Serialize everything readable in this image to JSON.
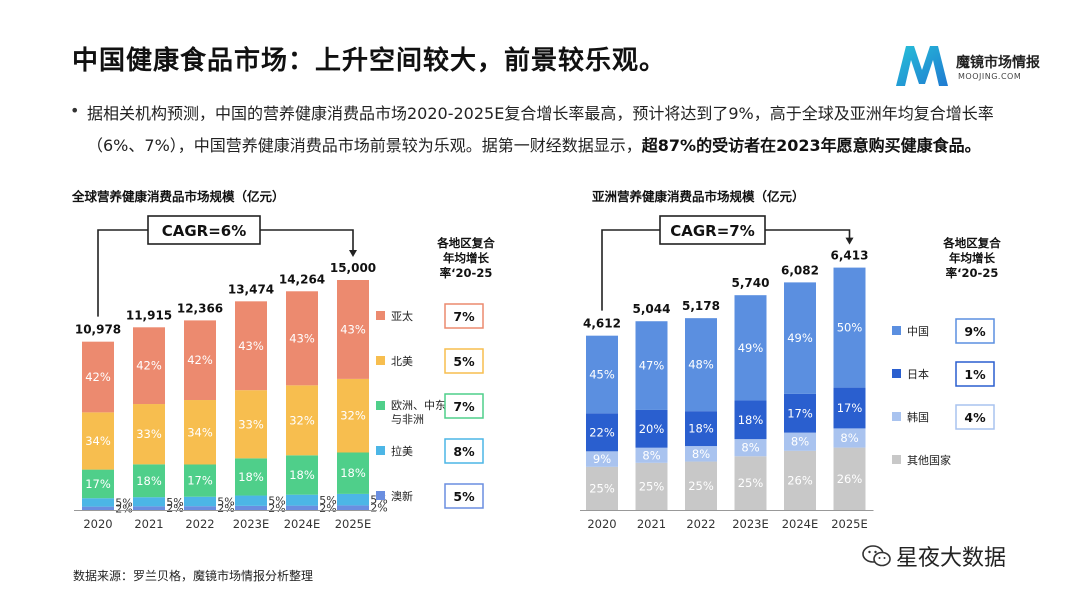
{
  "title": "中国健康食品市场：上升空间较大，前景较乐观。",
  "logo": {
    "name": "魔镜市场情报",
    "sub": "MOOJING.COM"
  },
  "bullet": {
    "part1": "据相关机构预测，中国的营养健康消费品市场2020-2025E复合增长率最高，预计将达到了9%，高于全球及亚洲年均复合增长率（6%、7%），中国营养健康消费品市场前景较为乐观。据第一财经数据显示，",
    "bold": "超87%的受访者在2023年愿意购买健康食品。"
  },
  "source": "数据来源：罗兰贝格，魔镜市场情报分析整理",
  "watermark": "星夜大数据",
  "chart_data": [
    {
      "type": "bar",
      "title": "全球营养健康消费品市场规模（亿元）",
      "cagr_label": "CAGR=6%",
      "categories": [
        "2020",
        "2021",
        "2022",
        "2023E",
        "2024E",
        "2025E"
      ],
      "totals": [
        "10,978",
        "11,915",
        "12,366",
        "13,474",
        "14,264",
        "15,000"
      ],
      "total_values": [
        10978,
        11915,
        12366,
        13474,
        14264,
        15000
      ],
      "series": [
        {
          "name": "亚太",
          "color": "#ec8a6f",
          "values": [
            42,
            42,
            42,
            43,
            43,
            43
          ],
          "cagr": "7%"
        },
        {
          "name": "北美",
          "color": "#f7be4f",
          "values": [
            34,
            33,
            34,
            33,
            32,
            32
          ],
          "cagr": "5%"
        },
        {
          "name": "欧洲、中东与非洲",
          "color": "#4fcf8a",
          "values": [
            17,
            18,
            17,
            18,
            18,
            18
          ],
          "cagr": "7%"
        },
        {
          "name": "拉美",
          "color": "#4cb6e6",
          "values": [
            5,
            5,
            5,
            5,
            5,
            5
          ],
          "cagr": "8%"
        },
        {
          "name": "澳新",
          "color": "#6a8ee0",
          "values": [
            2,
            2,
            2,
            2,
            2,
            2
          ],
          "cagr": "5%"
        }
      ],
      "legend_title": "各地区复合年均增长率‘20-25"
    },
    {
      "type": "bar",
      "title": "亚洲营养健康消费品市场规模（亿元）",
      "cagr_label": "CAGR=7%",
      "categories": [
        "2020",
        "2021",
        "2022",
        "2023E",
        "2024E",
        "2025E"
      ],
      "totals": [
        "4,612",
        "5,044",
        "5,178",
        "5,740",
        "6,082",
        "6,413"
      ],
      "total_values": [
        4612,
        5044,
        5178,
        5740,
        6082,
        6413
      ],
      "series": [
        {
          "name": "中国",
          "color": "#5b8fe0",
          "values": [
            45,
            47,
            48,
            49,
            49,
            50
          ],
          "cagr": "9%"
        },
        {
          "name": "日本",
          "color": "#2a5fcf",
          "values": [
            22,
            20,
            18,
            18,
            17,
            17
          ],
          "cagr": "1%"
        },
        {
          "name": "韩国",
          "color": "#a9c3ef",
          "values": [
            9,
            8,
            8,
            8,
            8,
            8
          ],
          "cagr": "4%"
        },
        {
          "name": "其他国家",
          "color": "#c8c8c8",
          "values": [
            25,
            25,
            25,
            25,
            26,
            26
          ],
          "cagr": ""
        }
      ],
      "legend_title": "各地区复合年均增长率‘20-25"
    }
  ]
}
